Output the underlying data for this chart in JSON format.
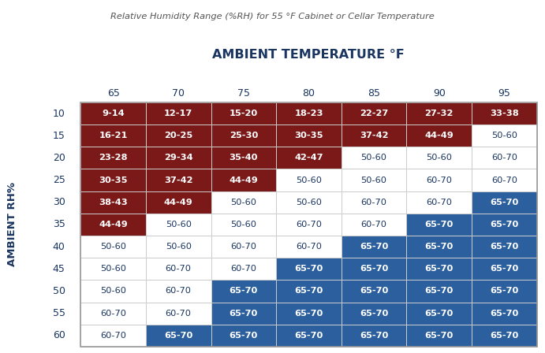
{
  "title": "Relative Humidity Range (%RH) for 55 °F Cabinet or Cellar Temperature",
  "col_header_label": "AMBIENT TEMPERATURE °F",
  "row_header_label": "AMBIENT RH%",
  "col_headers": [
    "65",
    "70",
    "75",
    "80",
    "85",
    "90",
    "95"
  ],
  "row_headers": [
    "10",
    "15",
    "20",
    "25",
    "30",
    "35",
    "40",
    "45",
    "50",
    "55",
    "60"
  ],
  "table_data": [
    [
      "9-14",
      "12-17",
      "15-20",
      "18-23",
      "22-27",
      "27-32",
      "33-38"
    ],
    [
      "16-21",
      "20-25",
      "25-30",
      "30-35",
      "37-42",
      "44-49",
      "50-60"
    ],
    [
      "23-28",
      "29-34",
      "35-40",
      "42-47",
      "50-60",
      "50-60",
      "60-70"
    ],
    [
      "30-35",
      "37-42",
      "44-49",
      "50-60",
      "50-60",
      "60-70",
      "60-70"
    ],
    [
      "38-43",
      "44-49",
      "50-60",
      "50-60",
      "60-70",
      "60-70",
      "65-70"
    ],
    [
      "44-49",
      "50-60",
      "50-60",
      "60-70",
      "60-70",
      "65-70",
      "65-70"
    ],
    [
      "50-60",
      "50-60",
      "60-70",
      "60-70",
      "65-70",
      "65-70",
      "65-70"
    ],
    [
      "50-60",
      "60-70",
      "60-70",
      "65-70",
      "65-70",
      "65-70",
      "65-70"
    ],
    [
      "50-60",
      "60-70",
      "65-70",
      "65-70",
      "65-70",
      "65-70",
      "65-70"
    ],
    [
      "60-70",
      "60-70",
      "65-70",
      "65-70",
      "65-70",
      "65-70",
      "65-70"
    ],
    [
      "60-70",
      "65-70",
      "65-70",
      "65-70",
      "65-70",
      "65-70",
      "65-70"
    ]
  ],
  "cell_colors": [
    [
      "#7B1818",
      "#7B1818",
      "#7B1818",
      "#7B1818",
      "#7B1818",
      "#7B1818",
      "#7B1818"
    ],
    [
      "#7B1818",
      "#7B1818",
      "#7B1818",
      "#7B1818",
      "#7B1818",
      "#7B1818",
      "#FFFFFF"
    ],
    [
      "#7B1818",
      "#7B1818",
      "#7B1818",
      "#7B1818",
      "#FFFFFF",
      "#FFFFFF",
      "#FFFFFF"
    ],
    [
      "#7B1818",
      "#7B1818",
      "#7B1818",
      "#FFFFFF",
      "#FFFFFF",
      "#FFFFFF",
      "#FFFFFF"
    ],
    [
      "#7B1818",
      "#7B1818",
      "#FFFFFF",
      "#FFFFFF",
      "#FFFFFF",
      "#FFFFFF",
      "#2C5F9E"
    ],
    [
      "#7B1818",
      "#FFFFFF",
      "#FFFFFF",
      "#FFFFFF",
      "#FFFFFF",
      "#2C5F9E",
      "#2C5F9E"
    ],
    [
      "#FFFFFF",
      "#FFFFFF",
      "#FFFFFF",
      "#FFFFFF",
      "#2C5F9E",
      "#2C5F9E",
      "#2C5F9E"
    ],
    [
      "#FFFFFF",
      "#FFFFFF",
      "#FFFFFF",
      "#2C5F9E",
      "#2C5F9E",
      "#2C5F9E",
      "#2C5F9E"
    ],
    [
      "#FFFFFF",
      "#FFFFFF",
      "#2C5F9E",
      "#2C5F9E",
      "#2C5F9E",
      "#2C5F9E",
      "#2C5F9E"
    ],
    [
      "#FFFFFF",
      "#FFFFFF",
      "#2C5F9E",
      "#2C5F9E",
      "#2C5F9E",
      "#2C5F9E",
      "#2C5F9E"
    ],
    [
      "#FFFFFF",
      "#2C5F9E",
      "#2C5F9E",
      "#2C5F9E",
      "#2C5F9E",
      "#2C5F9E",
      "#2C5F9E"
    ]
  ],
  "white_text_color": "#FFFFFF",
  "dark_text_color": "#1A3560",
  "bg_color": "#FFFFFF",
  "border_color": "#CCCCCC",
  "title_color": "#555555",
  "header_color": "#1A3560"
}
